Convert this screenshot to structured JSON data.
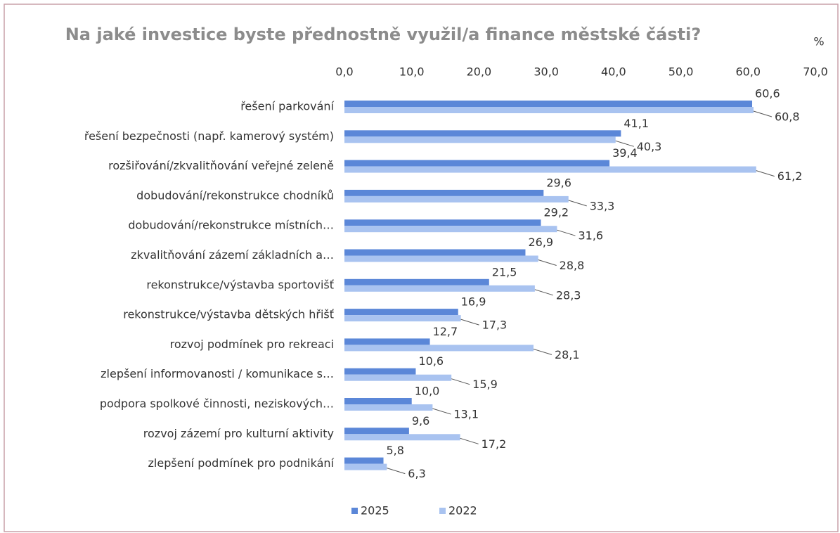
{
  "chart_data": {
    "type": "bar",
    "orientation": "horizontal",
    "title": "Na jaké investice byste přednostně využil/a finance městské části?",
    "unit": "%",
    "categories": [
      "řešení parkování",
      "řešení bezpečnosti (např. kamerový systém)",
      "rozšiřování/zkvalitňování veřejné zeleně",
      "dobudování/rekonstrukce chodníků",
      "dobudování/rekonstrukce místních…",
      "zkvalitňování zázemí základních a…",
      "rekonstrukce/výstavba sportovišť",
      "rekonstrukce/výstavba dětských hřišť",
      "rozvoj podmínek pro rekreaci",
      "zlepšení informovanosti / komunikace s…",
      "podpora spolkové činnosti, neziskových…",
      "rozvoj zázemí pro kulturní aktivity",
      "zlepšení podmínek pro podnikání"
    ],
    "series": [
      {
        "name": "2025",
        "color": "#5b87d8",
        "values": [
          60.6,
          41.1,
          39.4,
          29.6,
          29.2,
          26.9,
          21.5,
          16.9,
          12.7,
          10.6,
          10.0,
          9.6,
          5.8
        ],
        "value_labels": [
          "60,6",
          "41,1",
          "39,4",
          "29,6",
          "29,2",
          "26,9",
          "21,5",
          "16,9",
          "12,7",
          "10,6",
          "10,0",
          "9,6",
          "5,8"
        ]
      },
      {
        "name": "2022",
        "color": "#a9c3f0",
        "values": [
          60.8,
          40.3,
          61.2,
          33.3,
          31.6,
          28.8,
          28.3,
          17.3,
          28.1,
          15.9,
          13.1,
          17.2,
          6.3
        ],
        "value_labels": [
          "60,8",
          "40,3",
          "61,2",
          "33,3",
          "31,6",
          "28,8",
          "28,3",
          "17,3",
          "28,1",
          "15,9",
          "13,1",
          "17,2",
          "6,3"
        ]
      }
    ],
    "xlim": [
      0,
      70
    ],
    "xticks": [
      {
        "value": 0,
        "label": "0,0"
      },
      {
        "value": 10,
        "label": "10,0"
      },
      {
        "value": 20,
        "label": "20,0"
      },
      {
        "value": 30,
        "label": "30,0"
      },
      {
        "value": 40,
        "label": "40,0"
      },
      {
        "value": 50,
        "label": "50,0"
      },
      {
        "value": 60,
        "label": "60,0"
      },
      {
        "value": 70,
        "label": "70,0"
      }
    ],
    "legend": "bottom"
  }
}
